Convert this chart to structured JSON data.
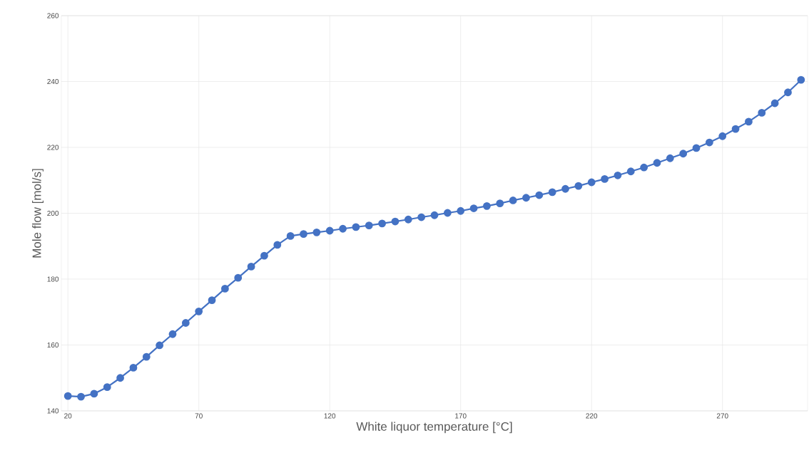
{
  "chart_data": {
    "type": "line",
    "xlabel": "White liquor temperature [°C]",
    "ylabel": "Mole flow [mol/s]",
    "x": [
      20,
      25,
      30,
      35,
      40,
      45,
      50,
      55,
      60,
      65,
      70,
      75,
      80,
      85,
      90,
      95,
      100,
      105,
      110,
      115,
      120,
      125,
      130,
      135,
      140,
      145,
      150,
      155,
      160,
      165,
      170,
      175,
      180,
      185,
      190,
      195,
      200,
      205,
      210,
      215,
      220,
      225,
      230,
      235,
      240,
      245,
      250,
      255,
      260,
      265,
      270,
      275,
      280,
      285,
      290,
      295,
      300
    ],
    "series": [
      {
        "color": "#4472c4",
        "values": [
          144.5,
          144.3,
          145.2,
          147.2,
          150.0,
          153.1,
          156.4,
          159.9,
          163.3,
          166.7,
          170.2,
          173.6,
          177.1,
          180.4,
          183.8,
          187.1,
          190.4,
          193.1,
          193.7,
          194.2,
          194.7,
          195.3,
          195.8,
          196.3,
          196.9,
          197.5,
          198.1,
          198.8,
          199.4,
          200.1,
          200.7,
          201.5,
          202.2,
          203.0,
          203.9,
          204.7,
          205.5,
          206.4,
          207.4,
          208.3,
          209.4,
          210.4,
          211.5,
          212.7,
          213.9,
          215.3,
          216.7,
          218.1,
          219.8,
          221.5,
          223.4,
          225.6,
          227.8,
          230.5,
          233.4,
          236.7,
          240.5
        ]
      }
    ],
    "xlim": [
      17.5,
      302.5
    ],
    "xticks": [
      20,
      70,
      120,
      170,
      220,
      270
    ],
    "ylim": [
      140,
      260
    ],
    "yticks": [
      140,
      160,
      180,
      200,
      220,
      240,
      260
    ],
    "grid": true,
    "marker": "circle",
    "line_style": "solid"
  }
}
